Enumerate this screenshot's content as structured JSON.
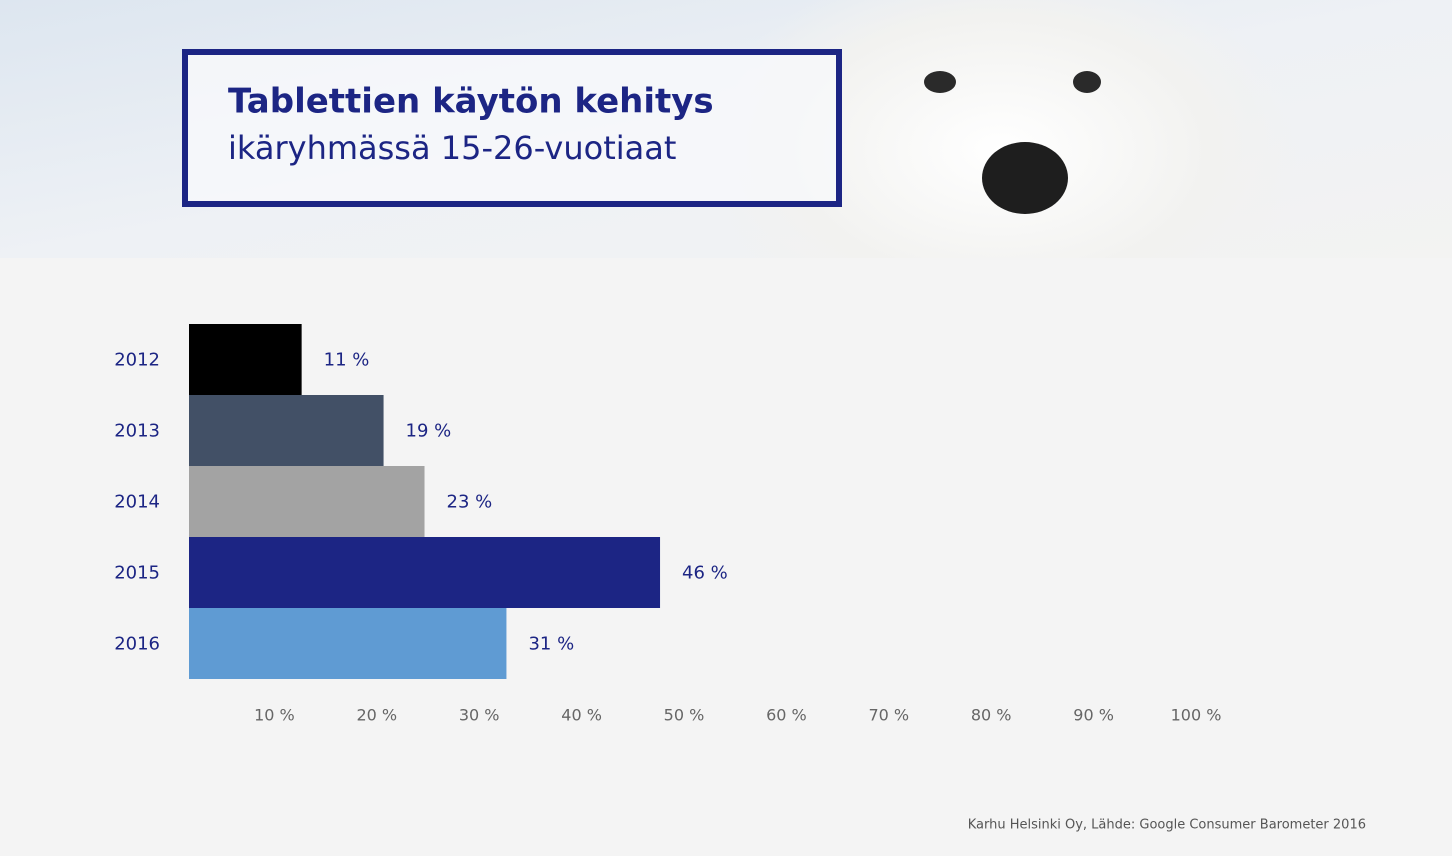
{
  "chart_data": {
    "type": "hbar",
    "title": "Tablettien käytön kehitys",
    "subtitle": "ikäryhmässä 15-26-vuotiaat",
    "categories": [
      "2012",
      "2013",
      "2014",
      "2015",
      "2016"
    ],
    "values": [
      11,
      19,
      23,
      46,
      31
    ],
    "value_labels": [
      "11 %",
      "19 %",
      "23 %",
      "46 %",
      "31 %"
    ],
    "colors": [
      "#000000",
      "#425066",
      "#a3a3a3",
      "#1c2584",
      "#5f9bd3"
    ],
    "xlim": [
      0,
      100
    ],
    "xticks": [
      {
        "value": 10,
        "label": "10 %"
      },
      {
        "value": 20,
        "label": "20 %"
      },
      {
        "value": 30,
        "label": "30 %"
      },
      {
        "value": 40,
        "label": "40 %"
      },
      {
        "value": 50,
        "label": "50 %"
      },
      {
        "value": 60,
        "label": "60 %"
      },
      {
        "value": 70,
        "label": "70 %"
      },
      {
        "value": 80,
        "label": "80 %"
      },
      {
        "value": 90,
        "label": "90 %"
      },
      {
        "value": 100,
        "label": "100 %"
      }
    ],
    "source": "Karhu Helsinki Oy, Lähde: Google Consumer Barometer 2016"
  }
}
